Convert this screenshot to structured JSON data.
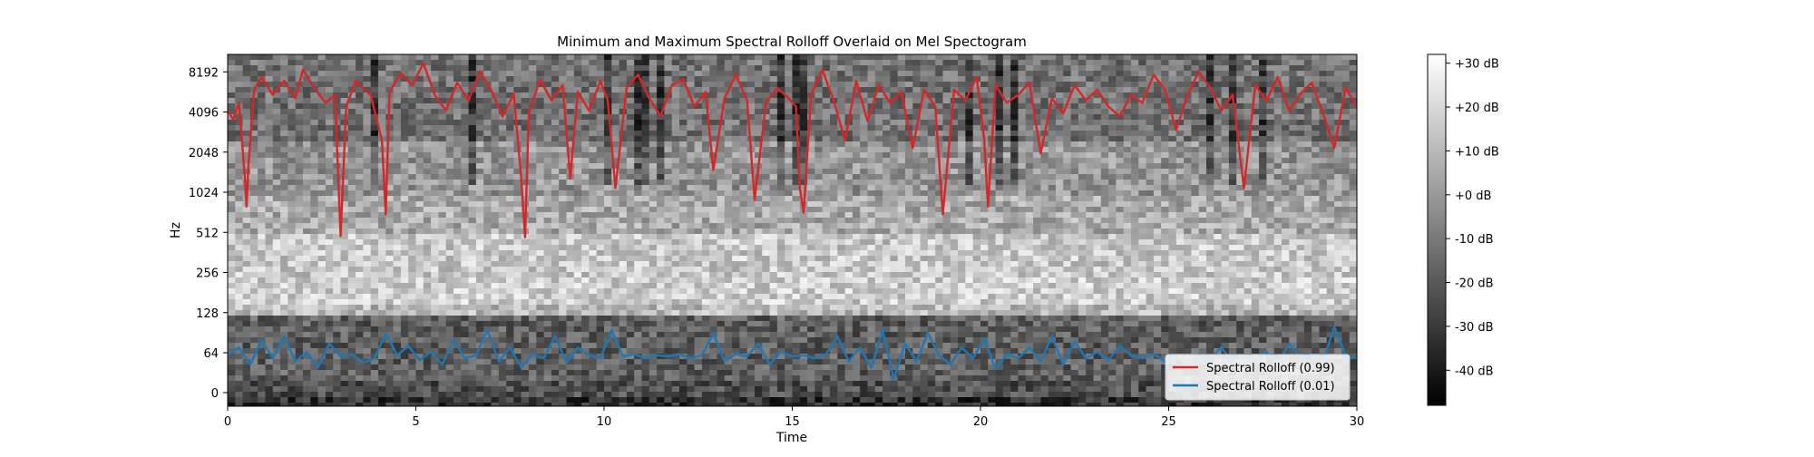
{
  "chart_data": {
    "type": "line",
    "title": "Minimum and Maximum Spectral Rolloff Overlaid on Mel Spectogram",
    "xlabel": "Time",
    "ylabel": "Hz",
    "xlim": [
      0,
      30
    ],
    "y_scale": "symlog",
    "x_ticks": [
      0,
      5,
      10,
      15,
      20,
      25,
      30
    ],
    "x_tick_labels": [
      "0",
      "5",
      "10",
      "15",
      "20",
      "25",
      "30"
    ],
    "y_ticks": [
      0,
      64,
      128,
      256,
      512,
      1024,
      2048,
      4096,
      8192
    ],
    "y_tick_labels": [
      "0",
      "64",
      "128",
      "256",
      "512",
      "1024",
      "2048",
      "4096",
      "8192"
    ],
    "legend_position": "lower-right",
    "background": "grayscale mel spectrogram",
    "series": [
      {
        "name": "Spectral Rolloff (0.99)",
        "color": "#d62728",
        "x": [
          0.0,
          0.15,
          0.3,
          0.45,
          0.5,
          0.55,
          0.7,
          0.9,
          1.2,
          1.5,
          1.8,
          2.0,
          2.3,
          2.6,
          2.85,
          3.0,
          3.15,
          3.4,
          3.8,
          4.1,
          4.2,
          4.3,
          4.6,
          4.9,
          5.2,
          5.5,
          5.8,
          6.1,
          6.4,
          6.7,
          7.0,
          7.3,
          7.6,
          7.8,
          7.9,
          8.0,
          8.3,
          8.6,
          8.9,
          9.1,
          9.3,
          9.6,
          9.9,
          10.1,
          10.3,
          10.6,
          10.9,
          11.2,
          11.5,
          11.8,
          12.1,
          12.4,
          12.7,
          12.9,
          13.2,
          13.5,
          13.8,
          14.0,
          14.3,
          14.6,
          14.9,
          15.1,
          15.2,
          15.3,
          15.5,
          15.8,
          16.1,
          16.4,
          16.7,
          17.0,
          17.3,
          17.6,
          17.9,
          18.2,
          18.5,
          18.8,
          19.0,
          19.3,
          19.6,
          19.9,
          20.1,
          20.2,
          20.4,
          20.7,
          21.0,
          21.3,
          21.6,
          21.9,
          22.2,
          22.5,
          22.8,
          23.1,
          23.4,
          23.7,
          24.0,
          24.3,
          24.6,
          24.9,
          25.2,
          25.5,
          25.8,
          26.1,
          26.4,
          26.7,
          27.0,
          27.3,
          27.6,
          27.9,
          28.2,
          28.5,
          28.8,
          29.1,
          29.4,
          29.7,
          30.0
        ],
        "y": [
          4200,
          3600,
          4800,
          1400,
          800,
          1600,
          6000,
          7500,
          5500,
          7000,
          5200,
          8500,
          6200,
          4800,
          5500,
          480,
          4500,
          7000,
          5500,
          2500,
          700,
          5800,
          8000,
          6500,
          9500,
          5500,
          4200,
          6800,
          5000,
          8300,
          6000,
          3800,
          5600,
          1300,
          470,
          4000,
          7200,
          5000,
          6500,
          1300,
          5800,
          4200,
          7000,
          5000,
          1100,
          6200,
          7800,
          5200,
          3800,
          6500,
          7200,
          4500,
          5800,
          1500,
          5200,
          7800,
          5000,
          900,
          4800,
          6200,
          5200,
          4500,
          1100,
          720,
          5500,
          8500,
          5000,
          2500,
          7000,
          3500,
          6500,
          4800,
          5800,
          2200,
          6000,
          4500,
          700,
          6000,
          5000,
          7500,
          2500,
          800,
          6500,
          4800,
          5500,
          6800,
          2000,
          5200,
          4000,
          6500,
          5000,
          6000,
          4500,
          3800,
          5500,
          4800,
          7800,
          6000,
          3000,
          5500,
          8200,
          6200,
          4200,
          5500,
          1100,
          6500,
          5000,
          7500,
          4200,
          5600,
          6800,
          4000,
          2200,
          6200,
          4500
        ]
      },
      {
        "name": "Spectral Rolloff (0.01)",
        "color": "#1f77b4",
        "x": [
          0.0,
          0.3,
          0.6,
          0.9,
          1.2,
          1.5,
          1.8,
          2.1,
          2.4,
          2.7,
          3.0,
          3.3,
          3.6,
          3.9,
          4.2,
          4.5,
          4.8,
          5.1,
          5.4,
          5.7,
          6.0,
          6.3,
          6.6,
          6.9,
          7.2,
          7.5,
          7.8,
          8.1,
          8.4,
          8.7,
          9.0,
          9.3,
          9.6,
          9.9,
          10.2,
          10.5,
          10.8,
          11.1,
          11.4,
          11.7,
          12.0,
          12.3,
          12.6,
          12.9,
          13.2,
          13.5,
          13.8,
          14.1,
          14.4,
          14.7,
          15.0,
          15.3,
          15.6,
          15.9,
          16.2,
          16.5,
          16.8,
          17.1,
          17.4,
          17.7,
          18.0,
          18.3,
          18.6,
          18.9,
          19.2,
          19.5,
          19.8,
          20.1,
          20.4,
          20.7,
          21.0,
          21.3,
          21.6,
          21.9,
          22.2,
          22.5,
          22.8,
          23.1,
          23.4,
          23.7,
          24.0,
          24.3,
          24.6,
          24.9,
          25.2,
          25.5,
          25.8,
          26.1,
          26.4,
          26.7,
          27.0,
          27.3,
          27.6,
          27.9,
          28.2,
          28.5,
          28.8,
          29.1,
          29.4,
          29.7,
          30.0
        ],
        "y": [
          60,
          70,
          45,
          80,
          55,
          85,
          50,
          65,
          40,
          75,
          58,
          62,
          48,
          55,
          90,
          60,
          72,
          52,
          65,
          45,
          80,
          55,
          60,
          95,
          50,
          70,
          40,
          62,
          55,
          85,
          48,
          70,
          60,
          55,
          95,
          58,
          62,
          55,
          60,
          58,
          62,
          55,
          60,
          90,
          50,
          62,
          58,
          75,
          45,
          65,
          58,
          60,
          55,
          62,
          85,
          50,
          70,
          40,
          95,
          22,
          75,
          50,
          90,
          60,
          45,
          70,
          55,
          82,
          38,
          62,
          55,
          70,
          50,
          85,
          45,
          78,
          55,
          65,
          52,
          72,
          60,
          55,
          62,
          50,
          58,
          40,
          62,
          55,
          70,
          48,
          60,
          52,
          65,
          45,
          75,
          55,
          62,
          50,
          100,
          60,
          55
        ]
      }
    ],
    "colorbar": {
      "tick_labels": [
        "+30 dB",
        "+20 dB",
        "+10 dB",
        "+0 dB",
        "-10 dB",
        "-20 dB",
        "-30 dB",
        "-40 dB"
      ],
      "tick_values": [
        30,
        20,
        10,
        0,
        -10,
        -20,
        -30,
        -40
      ],
      "range": [
        -48,
        32
      ]
    }
  }
}
